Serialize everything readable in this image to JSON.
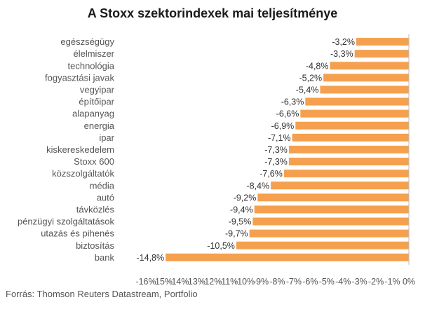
{
  "chart_data": {
    "type": "bar",
    "orientation": "horizontal",
    "title": "A Stoxx szektorindexek mai teljesítménye",
    "categories": [
      "egészségügy",
      "élelmiszer",
      "technológia",
      "fogyasztási javak",
      "vegyipar",
      "építőipar",
      "alapanyag",
      "energia",
      "ipar",
      "kiskereskedelem",
      "Stoxx 600",
      "közszolgáltatók",
      "média",
      "autó",
      "távközlés",
      "pénzügyi szolgáltatások",
      "utazás és pihenés",
      "biztosítás",
      "bank"
    ],
    "values": [
      -3.2,
      -3.3,
      -4.8,
      -5.2,
      -5.4,
      -6.3,
      -6.6,
      -6.9,
      -7.1,
      -7.3,
      -7.3,
      -7.6,
      -8.4,
      -9.2,
      -9.4,
      -9.5,
      -9.7,
      -10.5,
      -14.8
    ],
    "value_labels": [
      "-3,2%",
      "-3,3%",
      "-4,8%",
      "-5,2%",
      "-5,4%",
      "-6,3%",
      "-6,6%",
      "-6,9%",
      "-7,1%",
      "-7,3%",
      "-7,3%",
      "-7,6%",
      "-8,4%",
      "-9,2%",
      "-9,4%",
      "-9,5%",
      "-9,7%",
      "-10,5%",
      "-14,8%"
    ],
    "xlim": [
      -16,
      0
    ],
    "xticks": [
      -16,
      -15,
      -14,
      -13,
      -12,
      -11,
      -10,
      -9,
      -8,
      -7,
      -6,
      -5,
      -4,
      -3,
      -2,
      -1,
      0
    ],
    "xtick_labels": [
      "-16%",
      "-15%",
      "-14%",
      "-13%",
      "-12%",
      "-11%",
      "-10%",
      "-9%",
      "-8%",
      "-7%",
      "-6%",
      "-5%",
      "-4%",
      "-3%",
      "-2%",
      "-1%",
      "0%"
    ],
    "grid": false,
    "legend": "none",
    "bar_color": "#f5a04e",
    "source": "Forrás: Thomson Reuters  Datastream, Portfolio"
  }
}
